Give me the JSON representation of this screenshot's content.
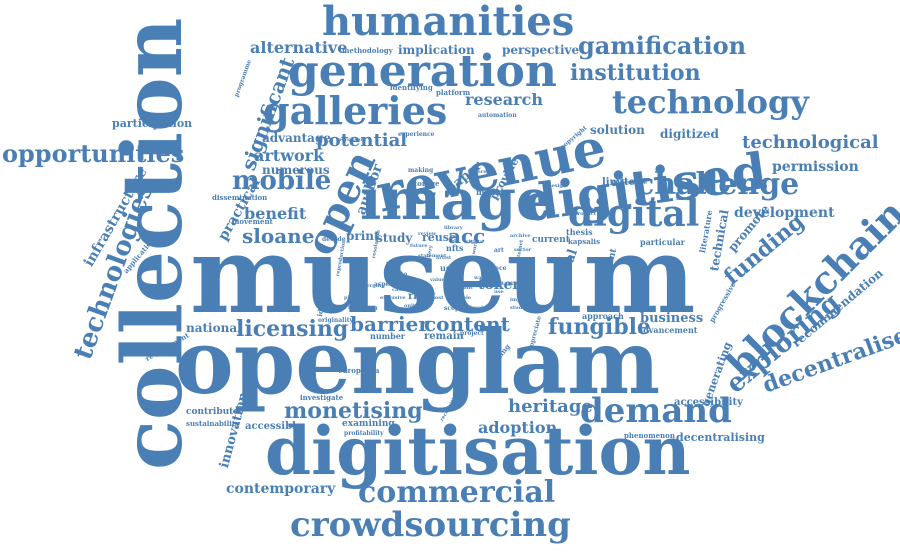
{
  "color": "#4a7fb5",
  "words": {
    "museum": "museum",
    "openglam": "openglam",
    "collection": "collection",
    "digitisation": "digitisation",
    "image": "image",
    "revenue": "revenue",
    "digitised": "digitised",
    "generation": "generation",
    "humanities": "humanities",
    "blockchain": "blockchain",
    "galleries": "galleries",
    "technology": "technology",
    "crowdsourcing": "crowdsourcing",
    "demand": "demand",
    "commercial": "commercial",
    "challenge": "challenge",
    "digital": "digital",
    "technologies": "technologies",
    "open": "open",
    "opportunities": "opportunities",
    "gamification": "gamification",
    "mobile": "mobile",
    "institution": "institution",
    "exploring": "exploring",
    "decentralised": "decentralised",
    "monetising": "monetising",
    "licensing": "licensing",
    "fungible": "fungible",
    "barrier": "barrier",
    "content": "content",
    "funding": "funding",
    "sloane": "sloane",
    "heritage": "heritage",
    "potential": "potential",
    "technological": "technological",
    "significant": "significant",
    "alternative": "alternative",
    "artwork": "artwork",
    "benefit": "benefit",
    "research": "research",
    "adoption": "adoption",
    "contemporary": "contemporary",
    "development": "development",
    "permission": "permission",
    "infrastructure": "infrastructure",
    "innovation": "innovation",
    "acc": "acc",
    "participation": "participation",
    "numerous": "numerous",
    "advantage": "advantage",
    "practical": "practical",
    "national": "national",
    "token": "token",
    "business": "business",
    "cultural": "cultural",
    "print": "print",
    "study": "study",
    "reuse": "reuse",
    "solution": "solution",
    "digitized": "digitized",
    "implication": "implication",
    "perspective": "perspective",
    "decentralising": "decentralising",
    "accessibility": "accessibility",
    "recommendation": "recommendation",
    "author": "author",
    "paper": "paper",
    "provide": "provide",
    "technical": "technical",
    "promote": "promote",
    "generating": "generating",
    "accessible": "accessible",
    "examining": "examining",
    "remain": "remain",
    "number": "number",
    "right": "right",
    "pilot": "pilot",
    "limited": "limited",
    "current": "current",
    "thesis": "thesis",
    "kapsalis": "kapsalis",
    "particular": "particular",
    "approach": "approach",
    "advancement": "advancement",
    "participant": "participant",
    "literature": "literature",
    "progressive": "progressive",
    "phenomenon": "phenomenon",
    "identification": "identification",
    "originality": "originality",
    "contribute": "contribute",
    "sustainability": "sustainability",
    "investigate": "investigate",
    "profitability": "profitability",
    "europeana": "europeana",
    "requirement": "requirement",
    "application": "application",
    "dissemination": "dissemination",
    "movement": "movement",
    "decade": "decade",
    "programme": "programme",
    "methodology": "methodology",
    "identifying": "identifying",
    "platform": "platform",
    "automation": "automation",
    "experience": "experience",
    "copyright": "copyright",
    "storage": "storage",
    "collectible": "collectible",
    "model": "model",
    "making": "making",
    "user": "user",
    "nfts": "nfts",
    "aspect": "aspect",
    "scope": "scope",
    "finding": "finding",
    "project": "project",
    "appreciate": "appreciate",
    "greece": "greece",
    "crypto": "crypto",
    "statement": "statement",
    "persistent": "persistent",
    "different": "different",
    "product": "product",
    "archive": "archive",
    "design": "design",
    "sector": "sector",
    "library": "library",
    "review": "review",
    "internet": "internet",
    "world": "world",
    "art": "art",
    "emerging": "emerging",
    "public": "public",
    "physical": "physical",
    "artist": "artist",
    "gallery": "gallery",
    "impact": "impact",
    "studies": "studies",
    "term": "term",
    "way": "way",
    "future": "future",
    "rights": "rights",
    "resolution": "resolution",
    "exclusive": "exclusive",
    "cost": "cost",
    "role": "role",
    "recognition": "recognition",
    "increasing": "increasing",
    "online": "online",
    "use": "use",
    "work": "work",
    "case": "case",
    "data": "data",
    "reproduction": "reproduction",
    "level": "level",
    "value": "value"
  }
}
